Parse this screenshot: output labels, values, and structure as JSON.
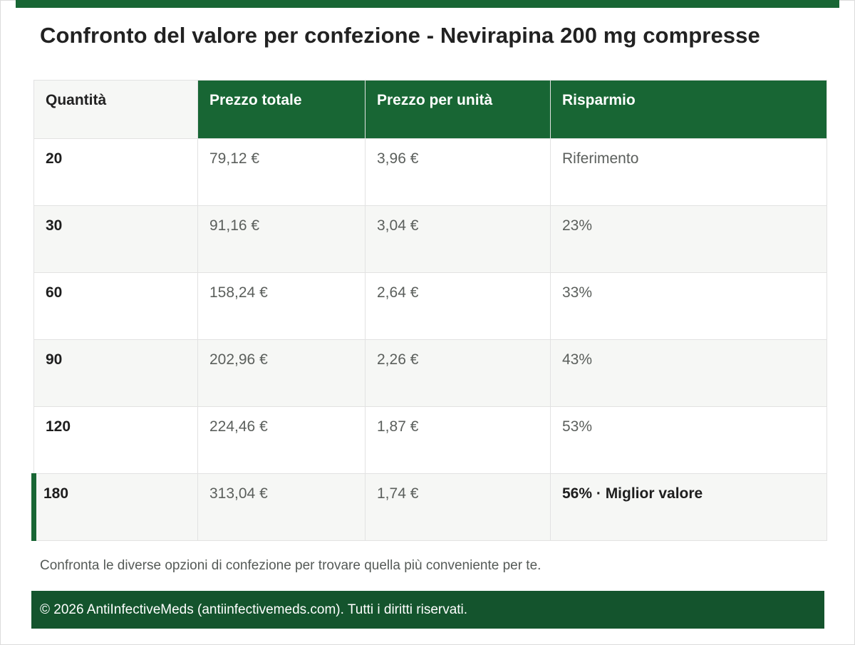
{
  "title": "Confronto del valore per confezione - Nevirapina 200 mg compresse",
  "table": {
    "headers": [
      "Quantità",
      "Prezzo totale",
      "Prezzo per unità",
      "Risparmio"
    ],
    "rows": [
      {
        "qty": "20",
        "total": "79,12 €",
        "unit": "3,96 €",
        "saving": "Riferimento"
      },
      {
        "qty": "30",
        "total": "91,16 €",
        "unit": "3,04 €",
        "saving": "23%"
      },
      {
        "qty": "60",
        "total": "158,24 €",
        "unit": "2,64 €",
        "saving": "33%"
      },
      {
        "qty": "90",
        "total": "202,96 €",
        "unit": "2,26 €",
        "saving": "43%"
      },
      {
        "qty": "120",
        "total": "224,46 €",
        "unit": "1,87 €",
        "saving": "53%"
      },
      {
        "qty": "180",
        "total": "313,04 €",
        "unit": "1,74 €",
        "saving": "56% · Miglior valore"
      }
    ]
  },
  "note": "Confronta le diverse opzioni di confezione per trovare quella più conveniente per te.",
  "footer": "© 2026 AntiInfectiveMeds (antiinfectivemeds.com). Tutti i diritti riservati.",
  "colors": {
    "brand_green": "#186634",
    "footer_green": "#14542d",
    "row_alt": "#f6f7f5"
  }
}
